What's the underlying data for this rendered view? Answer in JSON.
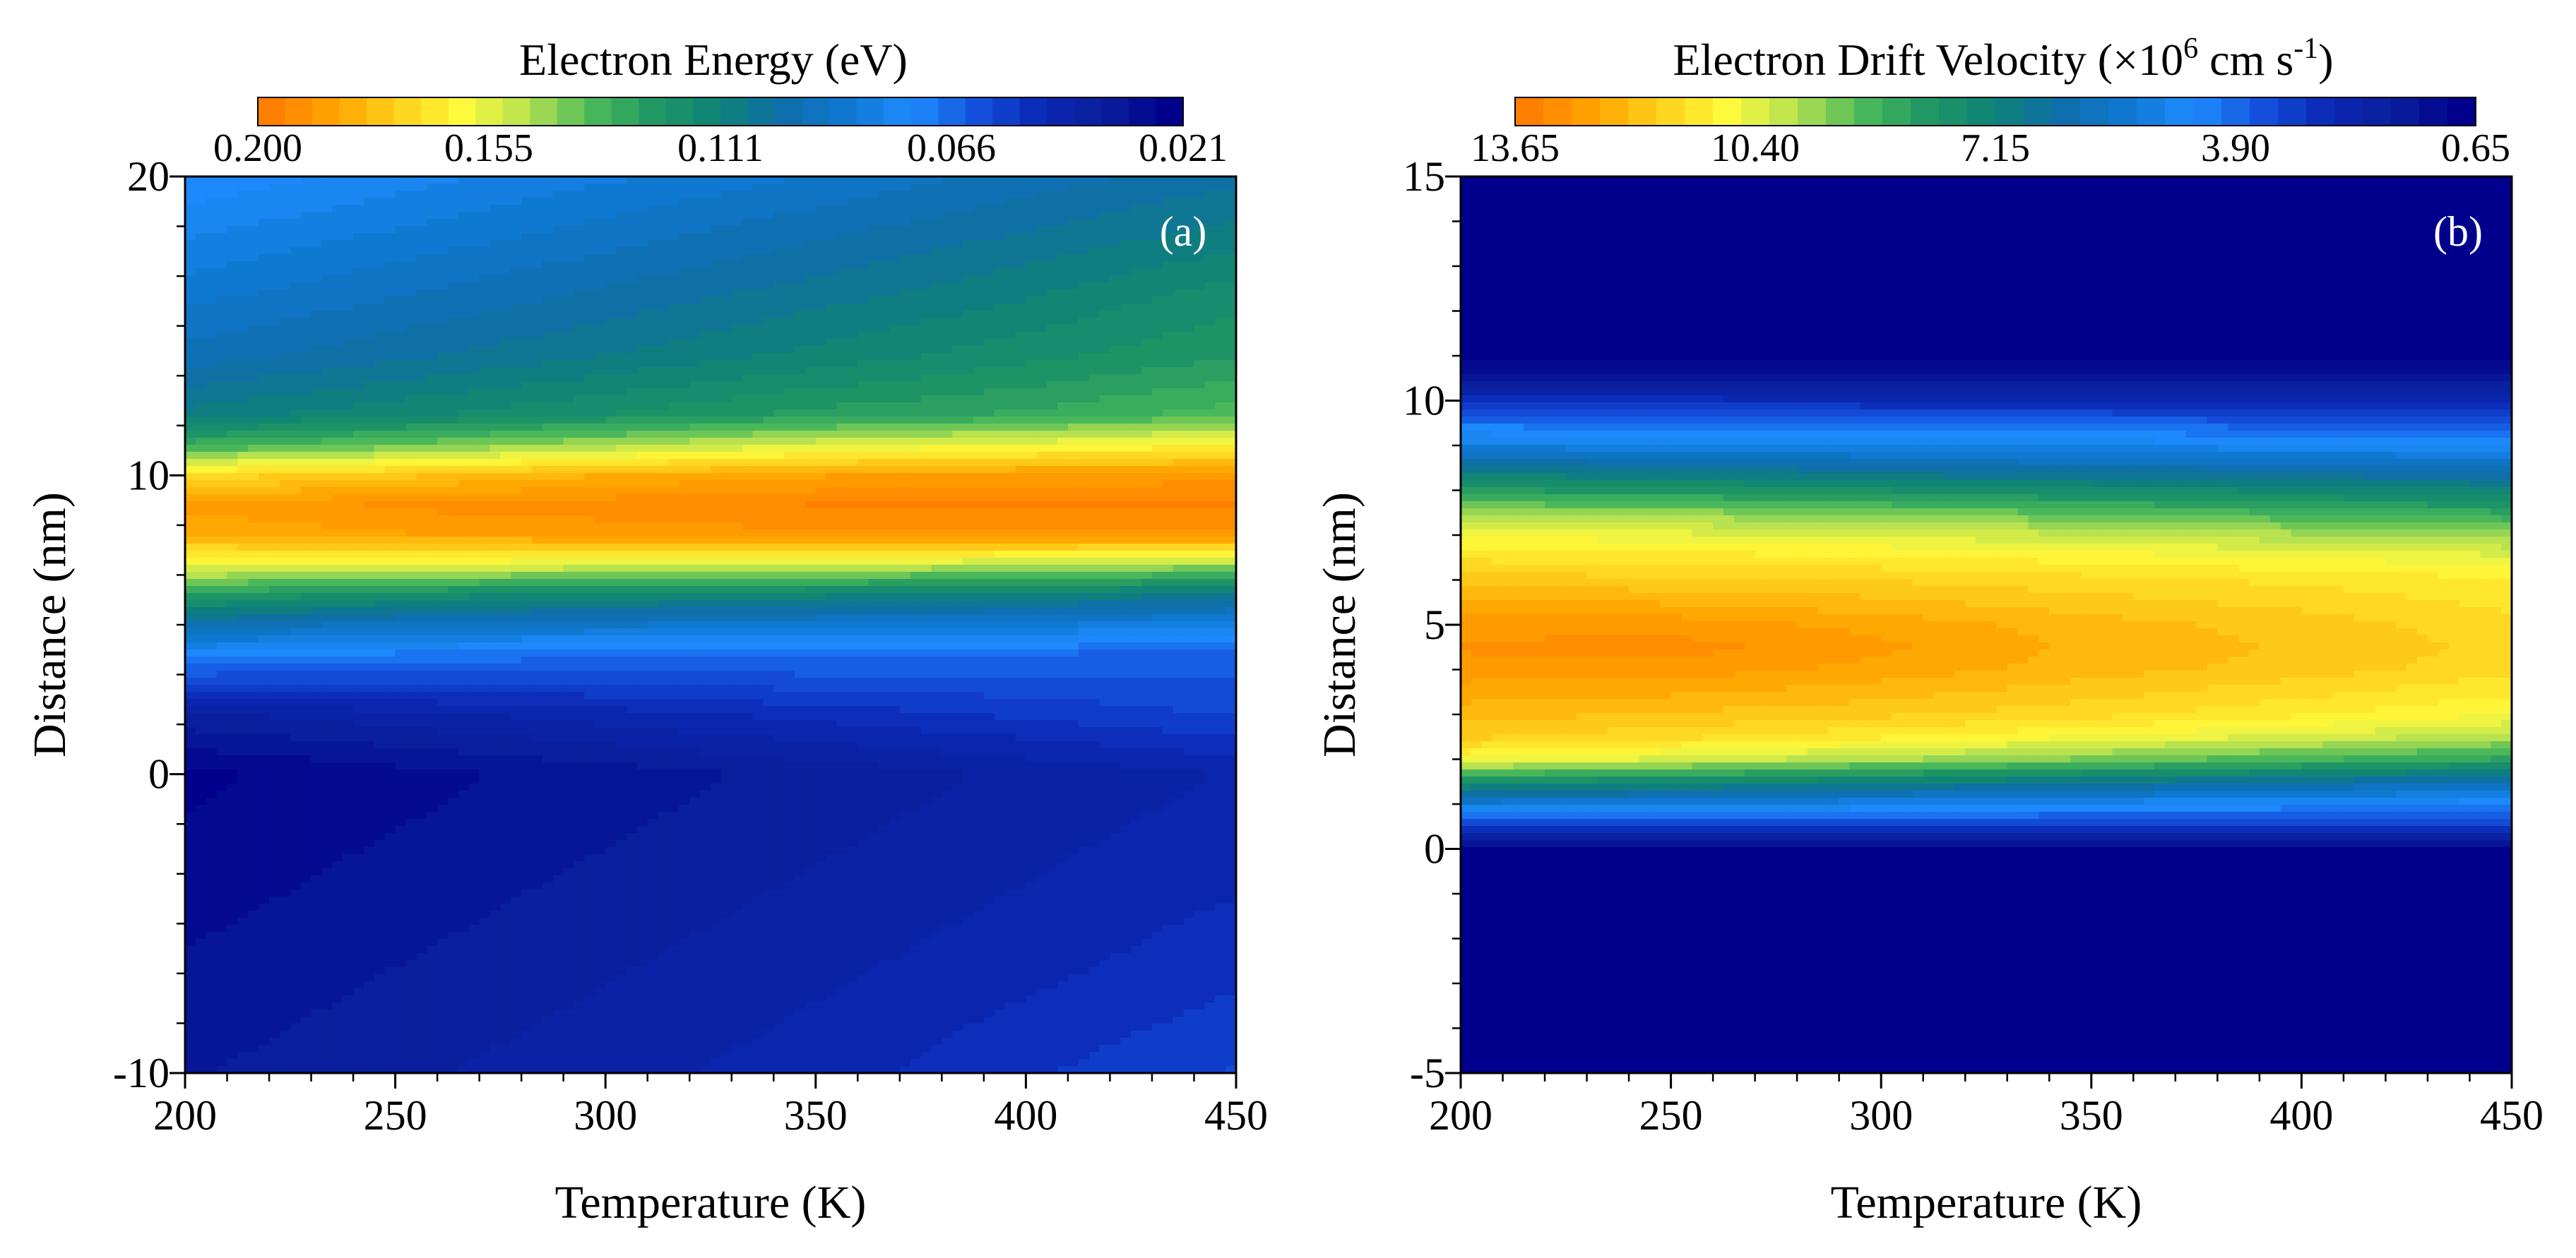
{
  "chart_data": [
    {
      "panel": "a",
      "type": "heatmap",
      "panel_label": "(a)",
      "colorbar": {
        "title": "Electron Energy (eV)",
        "ticks": [
          "0.200",
          "0.155",
          "0.111",
          "0.066",
          "0.021"
        ],
        "range": [
          0.2,
          0.021
        ]
      },
      "xlabel": "Temperature (K)",
      "ylabel": "Distance (nm)",
      "xlim": [
        200,
        450
      ],
      "ylim": [
        -10,
        20
      ],
      "xticks": [
        "200",
        "250",
        "300",
        "350",
        "400",
        "450"
      ],
      "yticks": [
        "-10",
        "0",
        "10",
        "20"
      ],
      "x": [
        200,
        250,
        300,
        350,
        400,
        450
      ],
      "y": [
        -10,
        -8,
        -6,
        -4,
        -2,
        0,
        2,
        4,
        5,
        6,
        7,
        8,
        9,
        10,
        11,
        12,
        14,
        16,
        18,
        20
      ],
      "values": [
        [
          0.032,
          0.036,
          0.04,
          0.044,
          0.05,
          0.056
        ],
        [
          0.03,
          0.034,
          0.038,
          0.042,
          0.047,
          0.052
        ],
        [
          0.028,
          0.032,
          0.036,
          0.04,
          0.044,
          0.049
        ],
        [
          0.026,
          0.03,
          0.034,
          0.038,
          0.042,
          0.046
        ],
        [
          0.024,
          0.028,
          0.032,
          0.036,
          0.04,
          0.044
        ],
        [
          0.022,
          0.026,
          0.03,
          0.034,
          0.038,
          0.042
        ],
        [
          0.036,
          0.04,
          0.044,
          0.048,
          0.052,
          0.056
        ],
        [
          0.072,
          0.068,
          0.066,
          0.066,
          0.064,
          0.062
        ],
        [
          0.096,
          0.09,
          0.088,
          0.086,
          0.084,
          0.08
        ],
        [
          0.125,
          0.118,
          0.114,
          0.112,
          0.11,
          0.105
        ],
        [
          0.16,
          0.158,
          0.156,
          0.154,
          0.15,
          0.146
        ],
        [
          0.184,
          0.188,
          0.19,
          0.192,
          0.192,
          0.192
        ],
        [
          0.19,
          0.194,
          0.196,
          0.198,
          0.198,
          0.198
        ],
        [
          0.172,
          0.178,
          0.184,
          0.188,
          0.19,
          0.192
        ],
        [
          0.132,
          0.14,
          0.148,
          0.156,
          0.16,
          0.165
        ],
        [
          0.108,
          0.114,
          0.12,
          0.126,
          0.13,
          0.136
        ],
        [
          0.094,
          0.1,
          0.106,
          0.112,
          0.118,
          0.124
        ],
        [
          0.086,
          0.092,
          0.098,
          0.104,
          0.11,
          0.118
        ],
        [
          0.078,
          0.084,
          0.09,
          0.096,
          0.102,
          0.108
        ],
        [
          0.07,
          0.076,
          0.082,
          0.088,
          0.094,
          0.1
        ]
      ]
    },
    {
      "panel": "b",
      "type": "heatmap",
      "panel_label": "(b)",
      "colorbar": {
        "title": "Electron Drift Velocity (×10",
        "title_sup": "6",
        "title_unit": " cm s",
        "title_unit_sup": "-1",
        "title_close": ")",
        "ticks": [
          "13.65",
          "10.40",
          "7.15",
          "3.90",
          "0.65"
        ],
        "range": [
          13.65,
          0.65
        ]
      },
      "xlabel": "Temperature (K)",
      "ylabel": "Distance (nm)",
      "xlim": [
        200,
        450
      ],
      "ylim": [
        -5,
        15
      ],
      "xticks": [
        "200",
        "250",
        "300",
        "350",
        "400",
        "450"
      ],
      "yticks": [
        "-5",
        "0",
        "5",
        "10",
        "15"
      ],
      "x": [
        200,
        250,
        300,
        350,
        400,
        450
      ],
      "y": [
        -5,
        -1,
        0,
        0.5,
        1,
        1.5,
        2,
        2.5,
        3,
        4,
        4.5,
        5,
        6,
        6.5,
        7,
        7.5,
        8,
        8.5,
        9,
        9.5,
        10,
        10.5,
        11,
        15
      ],
      "values": [
        [
          0.65,
          0.65,
          0.65,
          0.65,
          0.65,
          0.65
        ],
        [
          0.65,
          0.65,
          0.65,
          0.65,
          0.65,
          0.65
        ],
        [
          0.7,
          0.7,
          0.7,
          0.7,
          0.7,
          0.7
        ],
        [
          3.0,
          3.0,
          3.0,
          3.0,
          3.0,
          3.0
        ],
        [
          5.2,
          5.0,
          4.8,
          4.6,
          4.4,
          4.2
        ],
        [
          7.8,
          7.5,
          7.2,
          6.8,
          6.4,
          6.0
        ],
        [
          10.8,
          10.4,
          9.9,
          9.4,
          8.9,
          8.4
        ],
        [
          11.9,
          11.6,
          11.2,
          10.8,
          10.4,
          10.0
        ],
        [
          12.3,
          12.1,
          11.9,
          11.6,
          11.2,
          10.8
        ],
        [
          13.0,
          13.0,
          12.7,
          12.3,
          12.0,
          11.6
        ],
        [
          13.2,
          13.3,
          12.9,
          12.4,
          12.1,
          11.7
        ],
        [
          13.0,
          13.0,
          12.7,
          12.3,
          12.0,
          11.6
        ],
        [
          12.0,
          11.9,
          11.8,
          11.6,
          11.4,
          11.2
        ],
        [
          11.4,
          11.3,
          11.2,
          11.0,
          10.8,
          10.6
        ],
        [
          10.8,
          10.6,
          10.4,
          10.2,
          9.9,
          9.6
        ],
        [
          9.8,
          9.6,
          9.4,
          9.1,
          8.8,
          8.5
        ],
        [
          8.2,
          8.0,
          7.8,
          7.6,
          7.4,
          7.2
        ],
        [
          6.6,
          6.5,
          6.3,
          6.1,
          6.0,
          5.8
        ],
        [
          5.0,
          4.9,
          4.8,
          4.7,
          4.6,
          4.5
        ],
        [
          4.0,
          3.9,
          3.8,
          3.7,
          3.6,
          3.5
        ],
        [
          2.6,
          2.6,
          2.5,
          2.5,
          2.4,
          2.4
        ],
        [
          1.4,
          1.4,
          1.4,
          1.4,
          1.4,
          1.4
        ],
        [
          0.65,
          0.65,
          0.65,
          0.65,
          0.65,
          0.65
        ],
        [
          0.65,
          0.65,
          0.65,
          0.65,
          0.65,
          0.65
        ]
      ]
    }
  ],
  "palette": [
    "#ff7f00",
    "#ffa500",
    "#ffd21e",
    "#fffa3c",
    "#b4e150",
    "#4bb95a",
    "#1e9664",
    "#0f8278",
    "#0f6eaa",
    "#0f78d2",
    "#1e8cff",
    "#1450dc",
    "#0a28b4",
    "#0a1e9b",
    "#00008c"
  ]
}
